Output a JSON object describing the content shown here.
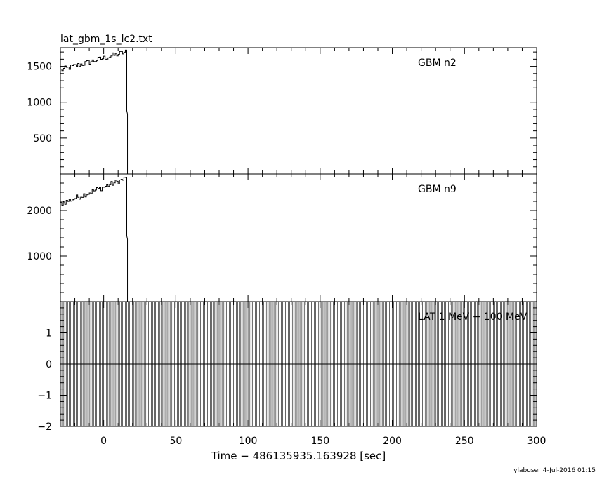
{
  "chart_data": {
    "type": "line",
    "title": "lat_gbm_1s_lc2.txt",
    "xlabel": "Time − 486135935.163928 [sec]",
    "footer": "ylabuser   4-Jul-2016 01:15",
    "x_range": [
      -30,
      300
    ],
    "x_ticks": [
      0,
      50,
      100,
      150,
      200,
      250,
      300
    ],
    "x_tick_labels": [
      "0",
      "50",
      "100",
      "150",
      "200",
      "250",
      "300"
    ],
    "panels": [
      {
        "name": "GBM n2",
        "ylim": [
          0,
          1760
        ],
        "y_ticks": [
          500,
          1000,
          1500
        ],
        "y_tick_labels": [
          "500",
          "1000",
          "1500"
        ],
        "start_level": 1450,
        "end_level": 1700,
        "drop_time": 15,
        "drop_level": 880,
        "end_time": 16
      },
      {
        "name": "GBM n9",
        "ylim": [
          0,
          2800
        ],
        "y_ticks": [
          1000,
          2000
        ],
        "y_tick_labels": [
          "1000",
          "2000"
        ],
        "start_level": 2150,
        "end_level": 2700,
        "drop_time": 15,
        "drop_level": 1440,
        "end_time": 16
      },
      {
        "name": "LAT 1 MeV − 100 MeV",
        "ylim": [
          -2,
          2
        ],
        "y_ticks": [
          -2,
          -1,
          0,
          1
        ],
        "y_tick_labels": [
          "−2",
          "−1",
          "0",
          "1"
        ],
        "baseline": 0,
        "bin_width": 1
      }
    ]
  }
}
